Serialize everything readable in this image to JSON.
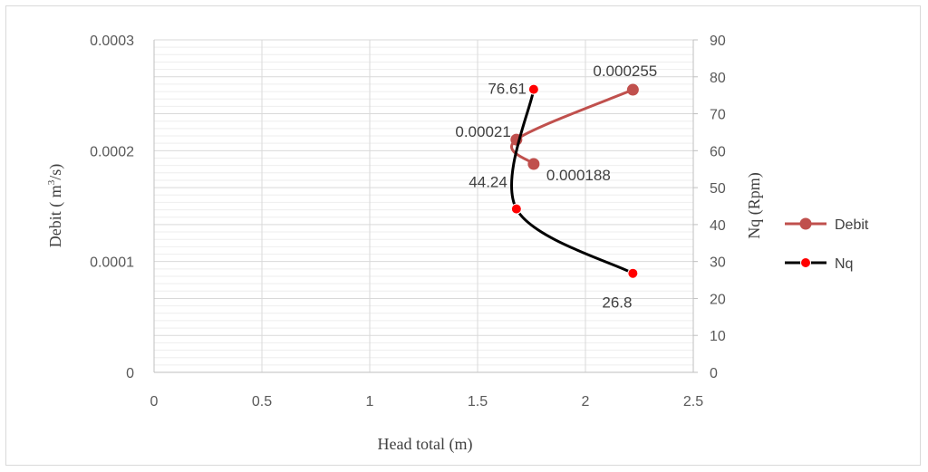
{
  "chart_data": {
    "type": "scatter",
    "title": "",
    "xlabel": "Head total (m)",
    "ylabel_left_prefix": "Debit ( m",
    "ylabel_left_sup": "3",
    "ylabel_left_suffix": "/s)",
    "ylabel_right": "Nq (Rpm)",
    "xlim": [
      0,
      2.5
    ],
    "ylim_left": [
      0,
      0.0003
    ],
    "ylim_right": [
      0,
      90
    ],
    "x_ticks": [
      "0",
      "0.5",
      "1",
      "1.5",
      "2",
      "2.5"
    ],
    "y_left_ticks": [
      "0",
      "0.0001",
      "0.0002",
      "0.0003"
    ],
    "y_right_ticks": [
      "0",
      "10",
      "20",
      "30",
      "40",
      "50",
      "60",
      "70",
      "80",
      "90"
    ],
    "grid": true,
    "legend_position": "right",
    "series": [
      {
        "name": "Debit",
        "axis": "left",
        "color": "#c0504d",
        "marker_color": "#c0504d",
        "points": [
          {
            "x": 2.22,
            "y": 0.000255,
            "label": "0.000255"
          },
          {
            "x": 1.68,
            "y": 0.00021,
            "label": "0.00021"
          },
          {
            "x": 1.76,
            "y": 0.000188,
            "label": "0.000188"
          }
        ]
      },
      {
        "name": "Nq",
        "axis": "right",
        "color": "#000000",
        "marker_color": "#ff0000",
        "points": [
          {
            "x": 1.76,
            "y": 76.61,
            "label": "76.61"
          },
          {
            "x": 1.68,
            "y": 44.24,
            "label": "44.24"
          },
          {
            "x": 2.22,
            "y": 26.8,
            "label": "26.8"
          }
        ]
      }
    ]
  }
}
